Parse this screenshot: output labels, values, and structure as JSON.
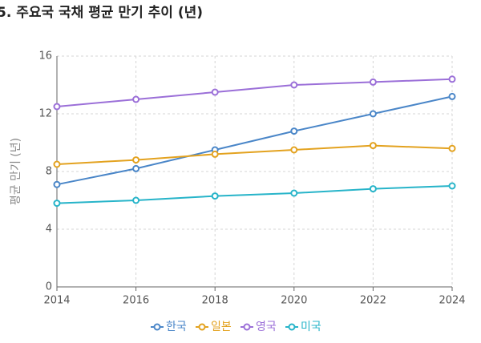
{
  "chart_data": {
    "type": "line",
    "title": "5. 주요국 국채 평균 만기 추이 (년)",
    "y_label": "평균 만기 (년)",
    "x": [
      2014,
      2016,
      2018,
      2020,
      2022,
      2024
    ],
    "xlim": [
      2014,
      2024
    ],
    "xticks": [
      2014,
      2016,
      2018,
      2020,
      2022,
      2024
    ],
    "ylim": [
      0,
      16
    ],
    "yticks": [
      0,
      4,
      8,
      12,
      16
    ],
    "grid": true,
    "legend": "bottom",
    "series": [
      {
        "name": "한국",
        "color": "#4a86c8",
        "values": [
          7.1,
          8.2,
          9.5,
          10.8,
          12.0,
          13.2
        ]
      },
      {
        "name": "일본",
        "color": "#e3a21f",
        "values": [
          8.5,
          8.8,
          9.2,
          9.5,
          9.8,
          9.6
        ]
      },
      {
        "name": "영국",
        "color": "#9b6fd8",
        "values": [
          12.5,
          13.0,
          13.5,
          14.0,
          14.2,
          14.4
        ]
      },
      {
        "name": "미국",
        "color": "#27b4c9",
        "values": [
          5.8,
          6.0,
          6.3,
          6.5,
          6.8,
          7.0
        ]
      }
    ]
  }
}
